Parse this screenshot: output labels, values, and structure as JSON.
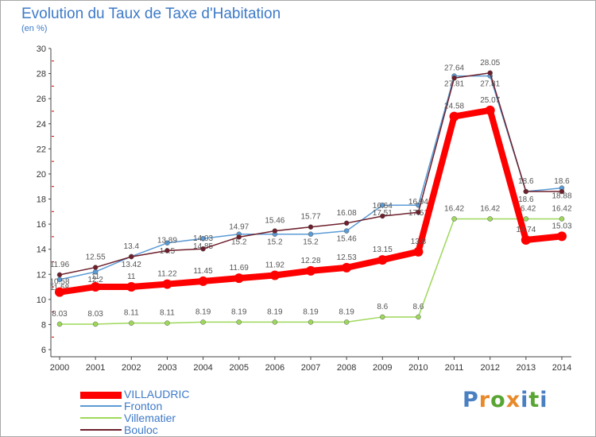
{
  "header": {
    "title": "Evolution du Taux de Taxe d'Habitation",
    "subtitle": "(en %)"
  },
  "logo": {
    "text": "Proxiti",
    "colors": [
      "#4a7fc1",
      "#e8892a",
      "#58a533",
      "#e8892a",
      "#4a7fc1",
      "#58a533",
      "#4a7fc1"
    ]
  },
  "chart_data": {
    "type": "line",
    "title": "Evolution du Taux de Taxe d'Habitation",
    "ylabel": "(en %)",
    "xlabel": "",
    "x": [
      "2000",
      "2001",
      "2002",
      "2003",
      "2004",
      "2005",
      "2006",
      "2007",
      "2008",
      "2009",
      "2010",
      "2011",
      "2012",
      "2013",
      "2014"
    ],
    "ylim": [
      6,
      30
    ],
    "yticks": [
      6,
      8,
      10,
      12,
      14,
      16,
      18,
      20,
      22,
      24,
      26,
      28,
      30
    ],
    "grid": false,
    "legend_position": "bottom-left",
    "series": [
      {
        "name": "VILLAUDRIC",
        "color": "#ff0000",
        "values": [
          10.58,
          11,
          11,
          11.22,
          11.45,
          11.69,
          11.92,
          12.28,
          12.53,
          13.15,
          13.8,
          24.58,
          25.07,
          14.74,
          15.03
        ],
        "labels": [
          "10.58",
          "11",
          "11",
          "11.22",
          "11.45",
          "11.69",
          "11.92",
          "12.28",
          "12.53",
          "13.15",
          "13.8",
          "24.58",
          "25.07",
          "14.74",
          "15.03"
        ]
      },
      {
        "name": "Fronton",
        "color": "#5b9bd5",
        "values": [
          11.58,
          12.2,
          13.42,
          14.5,
          14.85,
          15.2,
          15.2,
          15.2,
          15.46,
          17.51,
          17.51,
          27.81,
          27.81,
          18.6,
          18.88
        ],
        "labels": [
          "11.58",
          "12.2",
          "13.42",
          "14.5",
          "14.85",
          "15.2",
          "15.2",
          "15.2",
          "15.46",
          "17.51",
          "17.51",
          "27.81",
          "27.81",
          "18.6",
          "18.88"
        ]
      },
      {
        "name": "Villematier",
        "color": "#9ed85a",
        "values": [
          8.03,
          8.03,
          8.11,
          8.11,
          8.19,
          8.19,
          8.19,
          8.19,
          8.19,
          8.6,
          8.6,
          16.42,
          16.42,
          16.42,
          16.42
        ],
        "labels": [
          "8.03",
          "8.03",
          "8.11",
          "8.11",
          "8.19",
          "8.19",
          "8.19",
          "8.19",
          "8.19",
          "8.6",
          "8.6",
          "16.42",
          "16.42",
          "16.42",
          "16.42"
        ]
      },
      {
        "name": "Bouloc",
        "color": "#6e1f2b",
        "values": [
          11.96,
          12.55,
          13.4,
          13.89,
          14.03,
          14.97,
          15.46,
          15.77,
          16.08,
          16.64,
          16.94,
          27.64,
          28.05,
          18.6,
          18.6
        ],
        "labels": [
          "11.96",
          "12.55",
          "13.4",
          "13.89",
          "14.03",
          "14.97",
          "15.46",
          "15.77",
          "16.08",
          "16.64",
          "16.94",
          "27.64",
          "28.05",
          "18.6",
          "18.6"
        ]
      }
    ]
  }
}
